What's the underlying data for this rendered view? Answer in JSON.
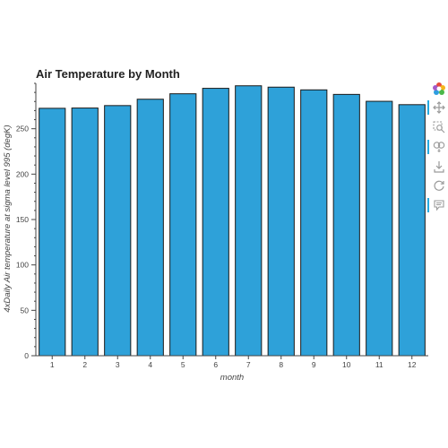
{
  "chart_data": {
    "type": "bar",
    "title": "Air Temperature by Month",
    "xlabel": "month",
    "ylabel": "4xDaily Air temperature at sigma level 995 (degK)",
    "categories": [
      "1",
      "2",
      "3",
      "4",
      "5",
      "6",
      "7",
      "8",
      "9",
      "10",
      "11",
      "12"
    ],
    "values": [
      272.5,
      272.8,
      275.5,
      282.5,
      288.5,
      294.5,
      297.3,
      295.8,
      292.8,
      287.8,
      280.2,
      276.5
    ],
    "ylim": [
      0,
      300
    ],
    "yticks": [
      0,
      50,
      100,
      150,
      200,
      250
    ],
    "grid": false,
    "bar_color": "#2ea1d9",
    "bar_outline_color": "#1a1a1a"
  },
  "toolbar": {
    "tools": [
      {
        "name": "bokeh-logo-icon",
        "active": false
      },
      {
        "name": "pan-icon",
        "active": true
      },
      {
        "name": "box-zoom-icon",
        "active": false
      },
      {
        "name": "wheel-zoom-icon",
        "active": true
      },
      {
        "name": "save-icon",
        "active": false
      },
      {
        "name": "reset-icon",
        "active": false
      },
      {
        "name": "hover-icon",
        "active": true
      }
    ]
  }
}
